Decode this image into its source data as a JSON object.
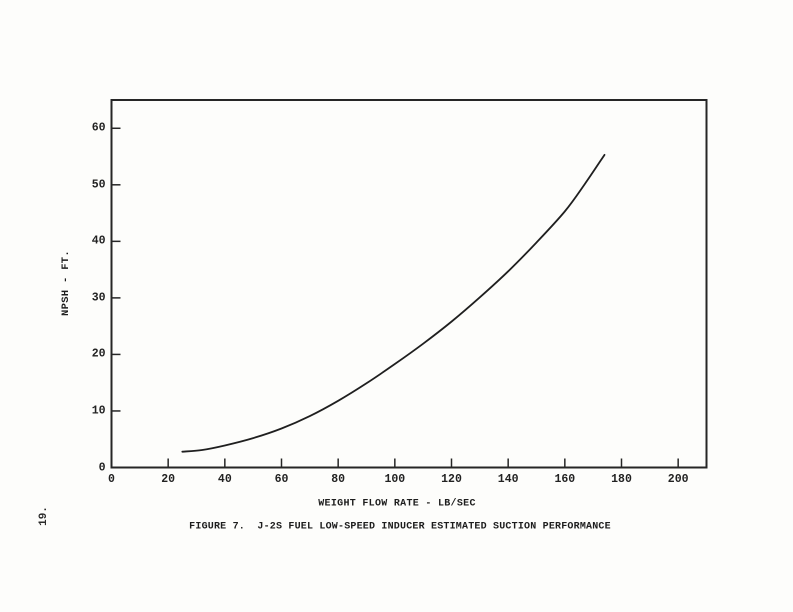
{
  "page": {
    "page_number_label": "19.",
    "paper_color": "#fdfdfb",
    "ink_color": "#1f1f1f"
  },
  "figure": {
    "caption": "FIGURE 7.  J-2S FUEL LOW-SPEED INDUCER ESTIMATED SUCTION PERFORMANCE"
  },
  "chart_data": {
    "type": "line",
    "title": "FIGURE 7.  J-2S FUEL LOW-SPEED INDUCER ESTIMATED SUCTION PERFORMANCE",
    "xlabel": "WEIGHT FLOW RATE - LB/SEC",
    "ylabel": "NPSH - FT.",
    "xlim": [
      0,
      210
    ],
    "ylim": [
      0,
      65
    ],
    "x_ticks": [
      0,
      20,
      40,
      60,
      80,
      100,
      120,
      140,
      160,
      180,
      200
    ],
    "y_ticks": [
      0,
      10,
      20,
      30,
      40,
      50,
      60
    ],
    "grid": false,
    "legend": "none",
    "line_color": "#1f1f1f",
    "series": [
      {
        "name": "estimated suction performance",
        "points": [
          [
            25,
            2.8
          ],
          [
            32,
            3.1
          ],
          [
            40,
            3.9
          ],
          [
            50,
            5.2
          ],
          [
            60,
            6.9
          ],
          [
            70,
            9.1
          ],
          [
            80,
            11.8
          ],
          [
            90,
            14.9
          ],
          [
            100,
            18.3
          ],
          [
            110,
            21.9
          ],
          [
            120,
            25.8
          ],
          [
            130,
            30.1
          ],
          [
            140,
            34.7
          ],
          [
            150,
            39.8
          ],
          [
            160,
            45.3
          ],
          [
            167,
            50.1
          ],
          [
            174,
            55.3
          ]
        ]
      }
    ]
  }
}
